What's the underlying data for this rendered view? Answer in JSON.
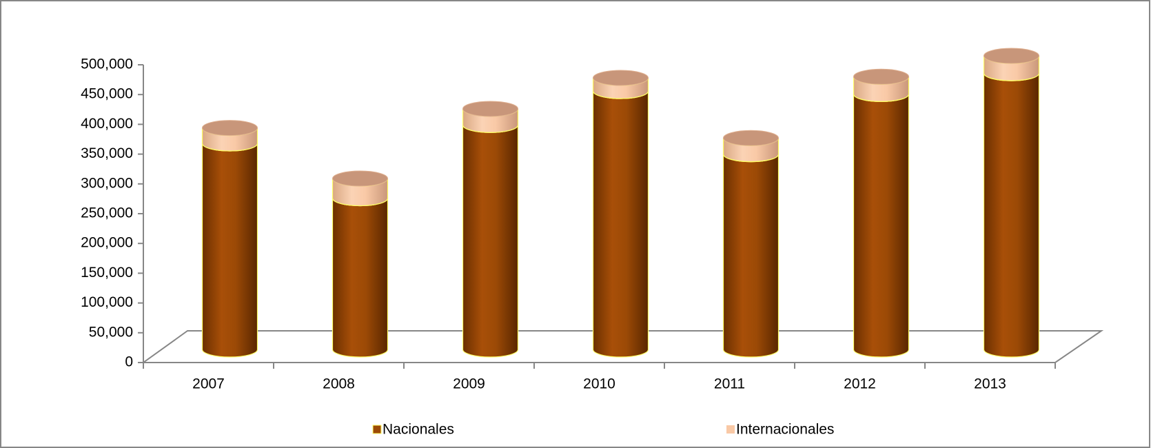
{
  "chart_data": {
    "type": "bar3d_stacked",
    "categories": [
      "2007",
      "2008",
      "2009",
      "2010",
      "2011",
      "2012",
      "2013"
    ],
    "series": [
      {
        "name": "Nacionales",
        "color": "#9c4a06",
        "values": [
          346000,
          254000,
          377000,
          434000,
          328000,
          429000,
          464000
        ]
      },
      {
        "name": "Internacionales",
        "color": "#f9c9a6",
        "values": [
          26000,
          33000,
          27000,
          22000,
          27000,
          29000,
          29000
        ]
      }
    ],
    "ylim": [
      0,
      500000
    ],
    "yticks": [
      0,
      {
        "value": 50000,
        "label": "50,000"
      },
      {
        "value": 100000,
        "label": "100,000"
      },
      {
        "value": 150000,
        "label": "150,000"
      },
      {
        "value": 200000,
        "label": "200,000"
      },
      {
        "value": 250000,
        "label": "250,000"
      },
      {
        "value": 300000,
        "label": "300,000"
      },
      {
        "value": 350000,
        "label": "350,000"
      },
      {
        "value": 400000,
        "label": "400,000"
      },
      {
        "value": 450000,
        "label": "450,000"
      },
      {
        "value": 500000,
        "label": "500,000"
      }
    ],
    "legend": "bottom"
  }
}
